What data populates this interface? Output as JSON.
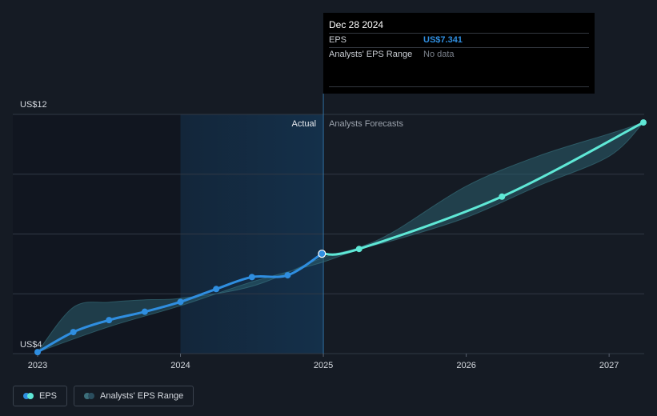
{
  "chart_data": {
    "type": "line",
    "title": "",
    "xlabel": "",
    "ylabel": "",
    "y_tick_labels": {
      "top": "US$12",
      "bottom": "US$4"
    },
    "ylim": [
      4,
      12
    ],
    "xlim": [
      2023,
      2027.24
    ],
    "x_ticks": [
      {
        "value": 2023,
        "label": "2023"
      },
      {
        "value": 2024,
        "label": "2024"
      },
      {
        "value": 2025,
        "label": "2025"
      },
      {
        "value": 2026,
        "label": "2026"
      },
      {
        "value": 2027,
        "label": "2027"
      }
    ],
    "gridlines_y": [
      4,
      6,
      8,
      10,
      12
    ],
    "divider_x": 2025,
    "past_highlight_range": [
      2024,
      2025
    ],
    "region_labels": {
      "past": "Actual",
      "future": "Analysts Forecasts"
    },
    "series": [
      {
        "name": "EPS",
        "color": "#2f8ee0",
        "points": [
          [
            2023.0,
            4.05
          ],
          [
            2023.25,
            4.72
          ],
          [
            2023.5,
            5.12
          ],
          [
            2023.75,
            5.4
          ],
          [
            2024.0,
            5.73
          ],
          [
            2024.25,
            6.16
          ],
          [
            2024.5,
            6.56
          ],
          [
            2024.75,
            6.62
          ],
          [
            2024.99,
            7.34
          ]
        ]
      },
      {
        "name": "EPS",
        "color": "#5fe8d6",
        "points": [
          [
            2024.99,
            7.34
          ],
          [
            2025.25,
            7.5
          ],
          [
            2026.25,
            9.25
          ],
          [
            2027.24,
            11.73
          ]
        ]
      }
    ],
    "range_band": {
      "name": "Analysts' EPS Range",
      "color": "#2b5f6e",
      "upper": [
        [
          2023.0,
          4.05
        ],
        [
          2023.25,
          5.55
        ],
        [
          2023.5,
          5.72
        ],
        [
          2023.75,
          5.8
        ],
        [
          2024.0,
          5.85
        ],
        [
          2024.5,
          6.25
        ],
        [
          2024.99,
          7.2
        ],
        [
          2025.25,
          7.55
        ],
        [
          2025.5,
          8.1
        ],
        [
          2026.0,
          9.6
        ],
        [
          2026.5,
          10.6
        ],
        [
          2027.0,
          11.35
        ],
        [
          2027.24,
          11.73
        ]
      ],
      "lower": [
        [
          2027.24,
          11.73
        ],
        [
          2027.0,
          10.6
        ],
        [
          2026.5,
          9.6
        ],
        [
          2026.0,
          8.55
        ],
        [
          2025.5,
          7.8
        ],
        [
          2025.25,
          7.5
        ],
        [
          2024.99,
          7.05
        ],
        [
          2024.5,
          6.4
        ],
        [
          2024.0,
          5.6
        ],
        [
          2023.5,
          4.9
        ],
        [
          2023.0,
          4.05
        ]
      ]
    },
    "legend_placement": "bottom-left"
  },
  "tooltip": {
    "date": "Dec 28 2024",
    "rows": [
      {
        "label": "EPS",
        "value": "US$7.341"
      },
      {
        "label": "Analysts' EPS Range",
        "value": "No data"
      }
    ]
  },
  "legend": {
    "items": [
      {
        "label": "EPS",
        "colors": [
          "#2f8ee0",
          "#5fe8d6"
        ]
      },
      {
        "label": "Analysts' EPS Range",
        "colors": [
          "#3d6f7b",
          "#2a4d5e"
        ]
      }
    ]
  },
  "colors": {
    "background": "#151b24",
    "past_shade": "#111620",
    "highlight": "#13293d",
    "gridline": "#303845",
    "axis_text": "#d6dae0"
  }
}
